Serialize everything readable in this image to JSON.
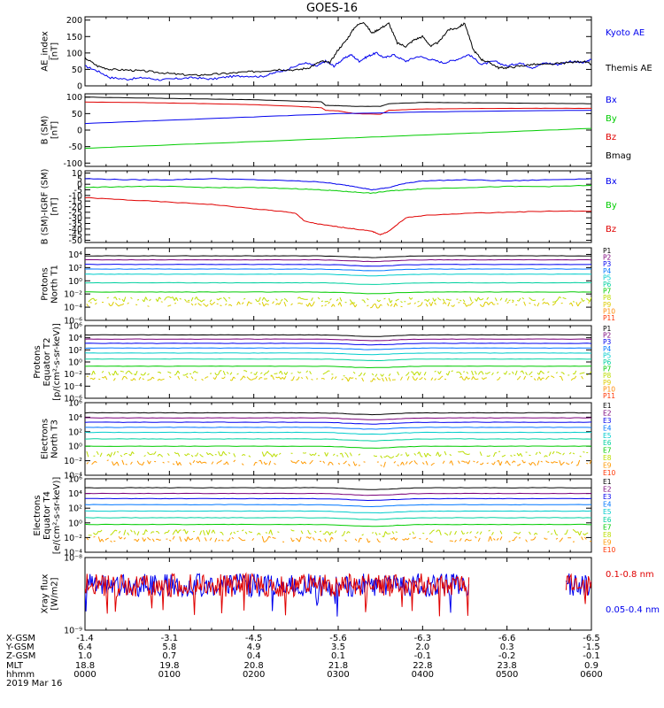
{
  "title": "GOES-16",
  "colors": {
    "black": "#000000",
    "red": "#e00000",
    "blue": "#0000ee",
    "green": "#00cc00",
    "p_palette": [
      "#000000",
      "#7a007a",
      "#0000ee",
      "#0077ff",
      "#00cccc",
      "#00d0a0",
      "#00cc00",
      "#bbdd00",
      "#ddcc00",
      "#ff8800",
      "#ff3300",
      "#cc0000"
    ],
    "e_palette": [
      "#000000",
      "#7a007a",
      "#0000ee",
      "#0077ff",
      "#00cccc",
      "#00d0a0",
      "#00cc00",
      "#bbdd00",
      "#ff9900",
      "#ff3300",
      "#cc0000"
    ]
  },
  "chart_data": [
    {
      "type": "line",
      "panel": "ae",
      "ylabel": [
        "AE_index",
        "[nT]"
      ],
      "ylim": [
        0,
        210
      ],
      "yticks": [
        0,
        50,
        100,
        150,
        200
      ],
      "ytick_labels": [
        "0",
        "50",
        "100",
        "150",
        "200"
      ],
      "xlim": [
        0,
        6
      ],
      "legend": [
        {
          "name": "Kyoto AE",
          "color": "#0000ee"
        },
        {
          "name": "Themis AE",
          "color": "#000000"
        }
      ],
      "series": [
        {
          "name": "Kyoto AE",
          "color": "#0000ee",
          "x": [
            0,
            0.15,
            0.3,
            0.5,
            0.7,
            0.9,
            1.1,
            1.3,
            1.5,
            1.7,
            1.9,
            2.1,
            2.25,
            2.4,
            2.6,
            2.75,
            2.85,
            2.95,
            3.05,
            3.15,
            3.25,
            3.35,
            3.45,
            3.55,
            3.65,
            3.8,
            3.95,
            4.1,
            4.25,
            4.4,
            4.55,
            4.7,
            4.85,
            5.0,
            5.15,
            5.3,
            5.45,
            5.6,
            5.75,
            5.9,
            6.0
          ],
          "y": [
            60,
            45,
            25,
            20,
            25,
            18,
            22,
            25,
            20,
            28,
            30,
            28,
            40,
            50,
            70,
            60,
            75,
            60,
            80,
            95,
            75,
            90,
            100,
            85,
            95,
            75,
            90,
            80,
            70,
            80,
            95,
            65,
            75,
            60,
            70,
            55,
            70,
            65,
            75,
            70,
            80
          ]
        },
        {
          "name": "Themis AE",
          "color": "#000000",
          "x": [
            0,
            0.15,
            0.3,
            0.5,
            0.7,
            0.9,
            1.1,
            1.3,
            1.5,
            1.7,
            1.9,
            2.1,
            2.3,
            2.5,
            2.65,
            2.8,
            2.9,
            3.0,
            3.1,
            3.2,
            3.3,
            3.4,
            3.5,
            3.6,
            3.7,
            3.8,
            3.9,
            4.0,
            4.1,
            4.2,
            4.3,
            4.4,
            4.5,
            4.6,
            4.7,
            4.8,
            4.9,
            5.0,
            5.15,
            5.3,
            5.5,
            5.7,
            5.9,
            6.0
          ],
          "y": [
            85,
            60,
            50,
            48,
            45,
            40,
            35,
            32,
            35,
            38,
            42,
            45,
            50,
            48,
            55,
            75,
            70,
            110,
            140,
            180,
            195,
            160,
            175,
            190,
            130,
            120,
            140,
            150,
            120,
            135,
            170,
            175,
            190,
            110,
            80,
            70,
            55,
            55,
            60,
            65,
            65,
            70,
            75,
            65
          ]
        }
      ]
    },
    {
      "type": "line",
      "panel": "b",
      "ylabel": [
        "B (SM)",
        "[nT]"
      ],
      "ylim": [
        -110,
        110
      ],
      "yticks": [
        -100,
        -50,
        0,
        50,
        100
      ],
      "ytick_labels": [
        "-100",
        "-50",
        "0",
        "50",
        "100"
      ],
      "xlim": [
        0,
        6
      ],
      "legend": [
        {
          "name": "Bx",
          "color": "#0000ee"
        },
        {
          "name": "By",
          "color": "#00cc00"
        },
        {
          "name": "Bz",
          "color": "#e00000"
        },
        {
          "name": "Bmag",
          "color": "#000000"
        }
      ],
      "series": [
        {
          "name": "Bmag",
          "color": "#000000",
          "x": [
            0,
            0.5,
            1.0,
            1.5,
            2.0,
            2.5,
            2.8,
            2.85,
            3.0,
            3.2,
            3.5,
            3.6,
            4.0,
            4.5,
            5.0,
            5.5,
            6.0
          ],
          "y": [
            100,
            98,
            96,
            94,
            92,
            88,
            86,
            75,
            74,
            72,
            72,
            80,
            84,
            83,
            82,
            81,
            80
          ]
        },
        {
          "name": "Bz",
          "color": "#e00000",
          "x": [
            0,
            0.5,
            1.0,
            1.5,
            2.0,
            2.5,
            2.8,
            2.85,
            3.0,
            3.2,
            3.5,
            3.6,
            4.0,
            4.5,
            5.0,
            5.5,
            6.0
          ],
          "y": [
            85,
            84,
            82,
            80,
            77,
            72,
            68,
            60,
            58,
            50,
            48,
            60,
            64,
            65,
            66,
            66,
            66
          ]
        },
        {
          "name": "Bx",
          "color": "#0000ee",
          "x": [
            0,
            1.0,
            2.0,
            3.0,
            3.5,
            4.0,
            5.0,
            6.0
          ],
          "y": [
            20,
            30,
            40,
            50,
            52,
            55,
            58,
            60
          ]
        },
        {
          "name": "By",
          "color": "#00cc00",
          "x": [
            0,
            1.0,
            2.0,
            3.0,
            4.0,
            5.0,
            6.0
          ],
          "y": [
            -55,
            -45,
            -35,
            -25,
            -15,
            -5,
            5
          ]
        }
      ]
    },
    {
      "type": "line",
      "panel": "dbigrf",
      "ylabel": [
        "B (SM)-IGRF (SM)",
        "[nT]"
      ],
      "ylim": [
        -52,
        12
      ],
      "yticks": [
        -50,
        -45,
        -40,
        -35,
        -30,
        -25,
        -20,
        -15,
        -10,
        -5,
        0,
        5,
        10
      ],
      "ytick_labels": [
        "-50",
        "-45",
        "-40",
        "-35",
        "-30",
        "-25",
        "-20",
        "-15",
        "-10",
        "-5",
        "0",
        "5",
        "10"
      ],
      "xlim": [
        0,
        6
      ],
      "legend": [
        {
          "name": "Bx",
          "color": "#0000ee"
        },
        {
          "name": "By",
          "color": "#00cc00"
        },
        {
          "name": "Bz",
          "color": "#e00000"
        }
      ],
      "series": [
        {
          "name": "Bx",
          "color": "#0000ee",
          "x": [
            0,
            0.5,
            1.0,
            1.5,
            2.0,
            2.5,
            2.8,
            3.0,
            3.2,
            3.4,
            3.6,
            3.8,
            4.0,
            4.5,
            5.0,
            5.5,
            6.0
          ],
          "y": [
            5,
            4,
            4,
            5,
            4,
            3,
            2,
            0,
            -2,
            -5,
            -3,
            1,
            3,
            4,
            3,
            4,
            5
          ]
        },
        {
          "name": "By",
          "color": "#00cc00",
          "x": [
            0,
            0.5,
            1.0,
            1.5,
            2.0,
            2.5,
            2.8,
            3.0,
            3.2,
            3.4,
            3.6,
            3.8,
            4.0,
            4.5,
            5.0,
            5.5,
            6.0
          ],
          "y": [
            -3,
            -2,
            -2,
            -3,
            -3,
            -4,
            -5,
            -6,
            -7,
            -8,
            -6,
            -5,
            -4,
            -3,
            -2,
            -2,
            -1
          ]
        },
        {
          "name": "Bz",
          "color": "#e00000",
          "x": [
            0,
            0.5,
            1.0,
            1.5,
            2.0,
            2.3,
            2.5,
            2.6,
            2.8,
            3.0,
            3.2,
            3.4,
            3.5,
            3.6,
            3.8,
            4.0,
            4.5,
            5.0,
            5.5,
            6.0
          ],
          "y": [
            -12,
            -14,
            -16,
            -18,
            -22,
            -24,
            -26,
            -33,
            -36,
            -38,
            -40,
            -42,
            -45,
            -42,
            -30,
            -28,
            -26,
            -25,
            -24,
            -24
          ]
        }
      ]
    },
    {
      "type": "line",
      "panel": "p1",
      "ylabel": [
        "Protons",
        "North T1"
      ],
      "ylog": true,
      "ylim": [
        1e-06,
        100000.0
      ],
      "yticks": [
        1e-06,
        0.0001,
        0.01,
        1.0,
        100.0,
        10000.0
      ],
      "ytick_labels": [
        "10⁻⁶",
        "10⁻⁴",
        "10⁻²",
        "10⁰",
        "10²",
        "10⁴"
      ],
      "xlim": [
        0,
        6
      ],
      "legend": [
        "P1",
        "P2",
        "P3",
        "P4",
        "P5",
        "P6",
        "P7",
        "P8",
        "P9",
        "P10",
        "P11"
      ],
      "series": [
        {
          "name": "P1",
          "level": 6000
        },
        {
          "name": "P2",
          "level": 1500
        },
        {
          "name": "P3",
          "level": 300
        },
        {
          "name": "P4",
          "level": 60
        },
        {
          "name": "P5",
          "level": 10
        },
        {
          "name": "P6",
          "level": 0.5
        },
        {
          "name": "P7",
          "level": 0.02
        },
        {
          "name": "P8",
          "level": 0.0015
        },
        {
          "name": "P9",
          "level": 0.0003
        }
      ]
    },
    {
      "type": "line",
      "panel": "p2",
      "ylabel": [
        "Protons",
        "Equator T2",
        "[p/(cm²-s-sr-keV)]"
      ],
      "ylog": true,
      "ylim": [
        1e-06,
        1000000.0
      ],
      "yticks": [
        1e-06,
        0.0001,
        0.01,
        1.0,
        100.0,
        10000.0,
        1000000.0
      ],
      "ytick_labels": [
        "10⁻⁶",
        "10⁻⁴",
        "10⁻²",
        "10⁰",
        "10²",
        "10⁴",
        "10⁶"
      ],
      "xlim": [
        0,
        6
      ],
      "legend": [
        "P1",
        "P2",
        "P3",
        "P4",
        "P5",
        "P6",
        "P7",
        "P8",
        "P9",
        "P10",
        "P11"
      ],
      "series": [
        {
          "name": "P1",
          "level": 30000
        },
        {
          "name": "P2",
          "level": 6000
        },
        {
          "name": "P3",
          "level": 1200
        },
        {
          "name": "P4",
          "level": 200
        },
        {
          "name": "P5",
          "level": 30
        },
        {
          "name": "P6",
          "level": 3
        },
        {
          "name": "P7",
          "level": 0.2
        },
        {
          "name": "P8",
          "level": 0.015
        },
        {
          "name": "P9",
          "level": 0.002
        }
      ]
    },
    {
      "type": "line",
      "panel": "e1",
      "ylabel": [
        "Electrons",
        "North T3"
      ],
      "ylog": true,
      "ylim": [
        0.0001,
        1000000.0
      ],
      "yticks": [
        0.0001,
        0.01,
        1.0,
        100.0,
        10000.0,
        1000000.0
      ],
      "ytick_labels": [
        "10⁻⁴",
        "10⁻²",
        "10⁰",
        "10²",
        "10⁴",
        "10⁶"
      ],
      "xlim": [
        0,
        6
      ],
      "legend": [
        "E1",
        "E2",
        "E3",
        "E4",
        "E5",
        "E6",
        "E7",
        "E8",
        "E9",
        "E10"
      ],
      "series": [
        {
          "name": "E1",
          "level": 40000
        },
        {
          "name": "E2",
          "level": 8000
        },
        {
          "name": "E3",
          "level": 2000
        },
        {
          "name": "E4",
          "level": 400
        },
        {
          "name": "E5",
          "level": 80
        },
        {
          "name": "E6",
          "level": 10
        },
        {
          "name": "E7",
          "level": 1
        },
        {
          "name": "E8",
          "level": 0.08
        },
        {
          "name": "E9",
          "level": 0.005
        }
      ]
    },
    {
      "type": "line",
      "panel": "e2",
      "ylabel": [
        "Electrons",
        "Equator T4",
        "[e/(cm²-s-sr-keV)]"
      ],
      "ylog": true,
      "ylim": [
        0.0001,
        1000000.0
      ],
      "yticks": [
        0.0001,
        0.01,
        1.0,
        100.0,
        10000.0,
        1000000.0
      ],
      "ytick_labels": [
        "10⁻⁴",
        "10⁻²",
        "10⁰",
        "10²",
        "10⁴",
        "10⁶"
      ],
      "xlim": [
        0,
        6
      ],
      "legend": [
        "E1",
        "E2",
        "E3",
        "E4",
        "E5",
        "E6",
        "E7",
        "E8",
        "E9",
        "E10"
      ],
      "series": [
        {
          "name": "E1",
          "level": 60000
        },
        {
          "name": "E2",
          "level": 10000
        },
        {
          "name": "E3",
          "level": 2000
        },
        {
          "name": "E4",
          "level": 300
        },
        {
          "name": "E5",
          "level": 40
        },
        {
          "name": "E6",
          "level": 5
        },
        {
          "name": "E7",
          "level": 0.6
        },
        {
          "name": "E8",
          "level": 0.05
        },
        {
          "name": "E9",
          "level": 0.006
        }
      ]
    },
    {
      "type": "line",
      "panel": "xray",
      "ylabel": [
        "Xray flux",
        "[W/m2]"
      ],
      "ylog": true,
      "ylim": [
        1e-09,
        1e-08
      ],
      "yticks": [
        1e-09,
        1e-08
      ],
      "ytick_labels": [
        "10⁻⁹",
        "10⁻⁸"
      ],
      "xlim": [
        0,
        6
      ],
      "legend": [
        {
          "name": "0.1-0.8 nm",
          "color": "#e00000"
        },
        {
          "name": "0.05-0.4 nm",
          "color": "#0000ee"
        }
      ],
      "series": [
        {
          "name": "0.1-0.8 nm",
          "color": "#e00000"
        },
        {
          "name": "0.05-0.4 nm",
          "color": "#0000ee"
        }
      ]
    }
  ],
  "xaxis": {
    "tick_hours": [
      0,
      1,
      2,
      3,
      4,
      5,
      6
    ],
    "rows": [
      {
        "label": "X-GSM",
        "values": [
          "-1.4",
          "-3.1",
          "-4.5",
          "-5.6",
          "-6.3",
          "-6.6",
          "-6.5"
        ]
      },
      {
        "label": "Y-GSM",
        "values": [
          "6.4",
          "5.8",
          "4.9",
          "3.5",
          "2.0",
          "0.3",
          "-1.5"
        ]
      },
      {
        "label": "Z-GSM",
        "values": [
          "1.0",
          "0.7",
          "0.4",
          "0.1",
          "-0.1",
          "-0.2",
          "-0.1"
        ]
      },
      {
        "label": "MLT",
        "values": [
          "18.8",
          "19.8",
          "20.8",
          "21.8",
          "22.8",
          "23.8",
          "0.9"
        ]
      },
      {
        "label": "hhmm",
        "values": [
          "0000",
          "0100",
          "0200",
          "0300",
          "0400",
          "0500",
          "0600"
        ]
      }
    ],
    "date": "2019 Mar 16"
  }
}
